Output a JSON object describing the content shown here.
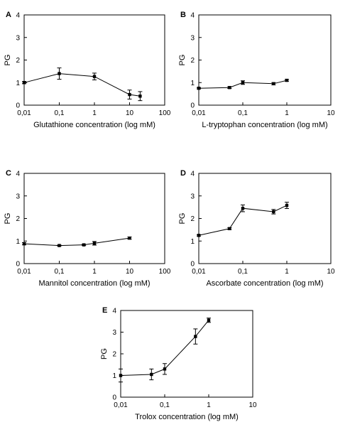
{
  "chart_data": [
    {
      "panel": "A",
      "type": "line",
      "xscale": "log",
      "xlim": [
        0.01,
        100
      ],
      "ylim": [
        0,
        4
      ],
      "xticks": [
        "0,01",
        "0,1",
        "1",
        "10",
        "100"
      ],
      "yticks": [
        "0",
        "1",
        "2",
        "3",
        "4"
      ],
      "xlabel": "Glutathione concentration (log mM)",
      "ylabel": "PG",
      "x": [
        0.01,
        0.1,
        1,
        10,
        20
      ],
      "y": [
        1.0,
        1.4,
        1.27,
        0.47,
        0.4
      ],
      "err": [
        0.05,
        0.25,
        0.15,
        0.2,
        0.2
      ]
    },
    {
      "panel": "B",
      "type": "line",
      "xscale": "log",
      "xlim": [
        0.01,
        10
      ],
      "ylim": [
        0,
        4
      ],
      "xticks": [
        "0,01",
        "0,1",
        "1",
        "10"
      ],
      "yticks": [
        "0",
        "1",
        "2",
        "3",
        "4"
      ],
      "xlabel": "L-tryptophan concentration (log mM)",
      "ylabel": "PG",
      "x": [
        0.01,
        0.05,
        0.1,
        0.5,
        1
      ],
      "y": [
        0.75,
        0.78,
        1.0,
        0.95,
        1.1
      ],
      "err": [
        0.03,
        0.04,
        0.08,
        0.05,
        0.04
      ]
    },
    {
      "panel": "C",
      "type": "line",
      "xscale": "log",
      "xlim": [
        0.01,
        100
      ],
      "ylim": [
        0,
        4
      ],
      "xticks": [
        "0,01",
        "0,1",
        "1",
        "10",
        "100"
      ],
      "yticks": [
        "0",
        "1",
        "2",
        "3",
        "4"
      ],
      "xlabel": "Mannitol concentration (log mM)",
      "ylabel": "PG",
      "x": [
        0.01,
        0.1,
        0.5,
        1,
        10
      ],
      "y": [
        0.88,
        0.8,
        0.83,
        0.9,
        1.13
      ],
      "err": [
        0.05,
        0.02,
        0.03,
        0.08,
        0.05
      ]
    },
    {
      "panel": "D",
      "type": "line",
      "xscale": "log",
      "xlim": [
        0.01,
        10
      ],
      "ylim": [
        0,
        4
      ],
      "xticks": [
        "0,01",
        "0,1",
        "1",
        "10"
      ],
      "yticks": [
        "0",
        "1",
        "2",
        "3",
        "4"
      ],
      "xlabel": "Ascorbate concentration (log mM)",
      "ylabel": "PG",
      "x": [
        0.01,
        0.05,
        0.1,
        0.5,
        1
      ],
      "y": [
        1.25,
        1.55,
        2.45,
        2.3,
        2.58
      ],
      "err": [
        0.03,
        0.04,
        0.15,
        0.1,
        0.14
      ]
    },
    {
      "panel": "E",
      "type": "line",
      "xscale": "log",
      "xlim": [
        0.01,
        10
      ],
      "ylim": [
        0,
        4
      ],
      "xticks": [
        "0,01",
        "0,1",
        "1",
        "10"
      ],
      "yticks": [
        "0",
        "1",
        "2",
        "3",
        "4"
      ],
      "xlabel": "Trolox concentration (log mM)",
      "ylabel": "PG",
      "x": [
        0.01,
        0.05,
        0.1,
        0.5,
        1
      ],
      "y": [
        1.0,
        1.05,
        1.3,
        2.8,
        3.55
      ],
      "err": [
        0.3,
        0.25,
        0.25,
        0.35,
        0.1
      ]
    }
  ]
}
